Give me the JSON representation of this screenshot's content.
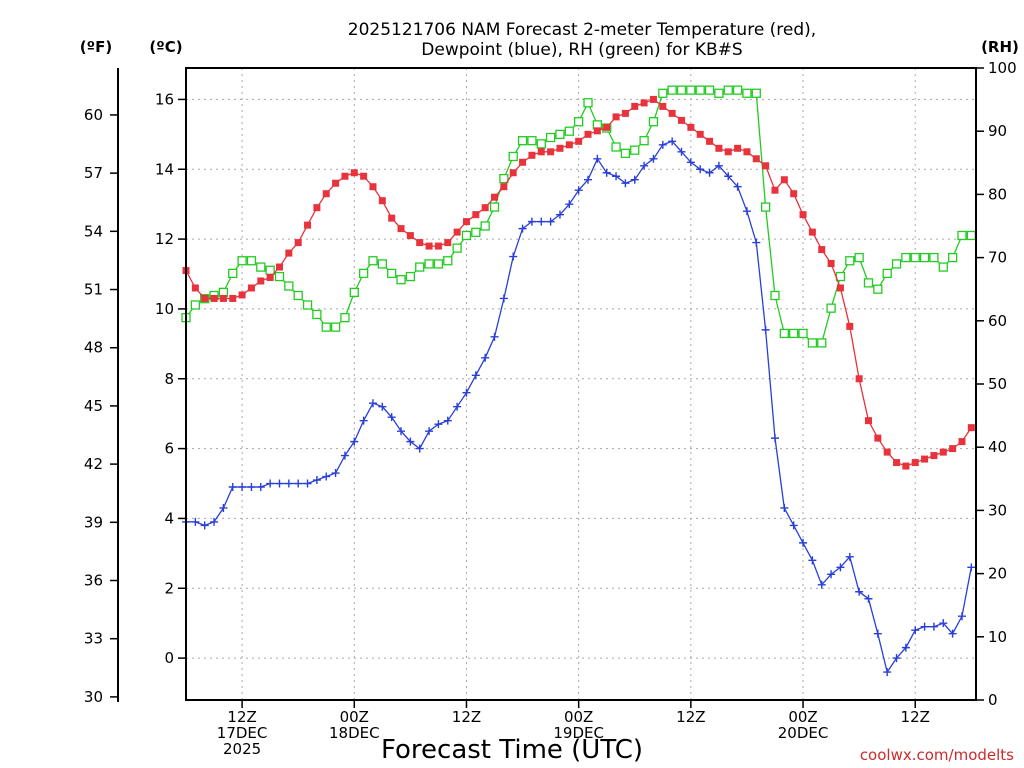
{
  "chart_data": {
    "type": "line",
    "title": [
      "2025121706 NAM Forecast 2-meter Temperature (red),",
      "Dewpoint (blue), RH (green) for KB#S"
    ],
    "xlabel": "Forecast Time (UTC)",
    "credit": "coolwx.com/modelts",
    "units": {
      "fahrenheit": "(ºF)",
      "celsius": "(ºC)",
      "rh": "(RH)"
    },
    "x_unit": "hours since 2025-12-17 06Z",
    "xlim": [
      0,
      84.5
    ],
    "celsius_axis": {
      "ylim": [
        -1.2,
        16.9
      ],
      "ticks": [
        0,
        2,
        4,
        6,
        8,
        10,
        12,
        14,
        16
      ]
    },
    "fahrenheit_axis": {
      "ticks": [
        30,
        33,
        36,
        39,
        42,
        45,
        48,
        51,
        54,
        57,
        60
      ]
    },
    "rh_axis": {
      "ylim": [
        0,
        100
      ],
      "ticks": [
        0,
        10,
        20,
        30,
        40,
        50,
        60,
        70,
        80,
        90,
        100
      ]
    },
    "x_ticks": [
      {
        "x": 6,
        "lines": [
          "12Z",
          "17DEC",
          "2025"
        ]
      },
      {
        "x": 18,
        "lines": [
          "00Z",
          "18DEC"
        ]
      },
      {
        "x": 30,
        "lines": [
          "12Z"
        ]
      },
      {
        "x": 42,
        "lines": [
          "00Z",
          "19DEC"
        ]
      },
      {
        "x": 54,
        "lines": [
          "12Z"
        ]
      },
      {
        "x": 66,
        "lines": [
          "00Z",
          "20DEC"
        ]
      },
      {
        "x": 78,
        "lines": [
          "12Z"
        ]
      }
    ],
    "x_gridlines": [
      6,
      18,
      30,
      42,
      54,
      66,
      78
    ],
    "celsius_gridlines": [
      0,
      2,
      4,
      6,
      8,
      10,
      12,
      14,
      16
    ],
    "series": [
      {
        "name": "Temperature",
        "unit": "C",
        "color": "#e8323c",
        "marker": "filled-square",
        "x": [
          0,
          1,
          2,
          3,
          4,
          5,
          6,
          7,
          8,
          9,
          10,
          11,
          12,
          13,
          14,
          15,
          16,
          17,
          18,
          19,
          20,
          21,
          22,
          23,
          24,
          25,
          26,
          27,
          28,
          29,
          30,
          31,
          32,
          33,
          34,
          35,
          36,
          37,
          38,
          39,
          40,
          41,
          42,
          43,
          44,
          45,
          46,
          47,
          48,
          49,
          50,
          51,
          52,
          53,
          54,
          55,
          56,
          57,
          58,
          59,
          60,
          61,
          62,
          63,
          64,
          65,
          66,
          67,
          68,
          69,
          70,
          71,
          72,
          73,
          74,
          75,
          76,
          77,
          78,
          79,
          80,
          81,
          82,
          83,
          84
        ],
        "values": [
          11.1,
          10.6,
          10.3,
          10.3,
          10.3,
          10.3,
          10.4,
          10.6,
          10.8,
          10.9,
          11.2,
          11.6,
          11.9,
          12.4,
          12.9,
          13.3,
          13.6,
          13.8,
          13.9,
          13.8,
          13.5,
          13.1,
          12.6,
          12.3,
          12.1,
          11.9,
          11.8,
          11.8,
          11.9,
          12.2,
          12.5,
          12.7,
          12.9,
          13.2,
          13.5,
          13.9,
          14.2,
          14.4,
          14.5,
          14.5,
          14.6,
          14.7,
          14.8,
          15.0,
          15.1,
          15.2,
          15.5,
          15.6,
          15.8,
          15.9,
          16.0,
          15.8,
          15.6,
          15.4,
          15.2,
          15.0,
          14.8,
          14.6,
          14.5,
          14.6,
          14.5,
          14.3,
          14.1,
          13.4,
          13.7,
          13.3,
          12.7,
          12.2,
          11.7,
          11.3,
          10.6,
          9.5,
          8.0,
          6.8,
          6.3,
          5.9,
          5.6,
          5.5,
          5.6,
          5.7,
          5.8,
          5.9,
          6.0,
          6.2,
          6.6
        ]
      },
      {
        "name": "Dewpoint",
        "unit": "C",
        "color": "#2a3fd8",
        "marker": "plus",
        "x": [
          0,
          1,
          2,
          3,
          4,
          5,
          6,
          7,
          8,
          9,
          10,
          11,
          12,
          13,
          14,
          15,
          16,
          17,
          18,
          19,
          20,
          21,
          22,
          23,
          24,
          25,
          26,
          27,
          28,
          29,
          30,
          31,
          32,
          33,
          34,
          35,
          36,
          37,
          38,
          39,
          40,
          41,
          42,
          43,
          44,
          45,
          46,
          47,
          48,
          49,
          50,
          51,
          52,
          53,
          54,
          55,
          56,
          57,
          58,
          59,
          60,
          61,
          62,
          63,
          64,
          65,
          66,
          67,
          68,
          69,
          70,
          71,
          72,
          73,
          74,
          75,
          76,
          77,
          78,
          79,
          80,
          81,
          82,
          83,
          84
        ],
        "values": [
          3.9,
          3.9,
          3.8,
          3.9,
          4.3,
          4.9,
          4.9,
          4.9,
          4.9,
          5.0,
          5.0,
          5.0,
          5.0,
          5.0,
          5.1,
          5.2,
          5.3,
          5.8,
          6.2,
          6.8,
          7.3,
          7.2,
          6.9,
          6.5,
          6.2,
          6.0,
          6.5,
          6.7,
          6.8,
          7.2,
          7.6,
          8.1,
          8.6,
          9.2,
          10.3,
          11.5,
          12.3,
          12.5,
          12.5,
          12.5,
          12.7,
          13.0,
          13.4,
          13.7,
          14.3,
          13.9,
          13.8,
          13.6,
          13.7,
          14.1,
          14.3,
          14.7,
          14.8,
          14.5,
          14.2,
          14.0,
          13.9,
          14.1,
          13.8,
          13.5,
          12.8,
          11.9,
          9.4,
          6.3,
          4.3,
          3.8,
          3.3,
          2.8,
          2.1,
          2.4,
          2.6,
          2.9,
          1.9,
          1.7,
          0.7,
          -0.4,
          0.0,
          0.3,
          0.8,
          0.9,
          0.9,
          1.0,
          0.7,
          1.2,
          2.6
        ]
      },
      {
        "name": "RH",
        "unit": "%",
        "color": "#22cc22",
        "marker": "open-square",
        "x": [
          0,
          1,
          2,
          3,
          4,
          5,
          6,
          7,
          8,
          9,
          10,
          11,
          12,
          13,
          14,
          15,
          16,
          17,
          18,
          19,
          20,
          21,
          22,
          23,
          24,
          25,
          26,
          27,
          28,
          29,
          30,
          31,
          32,
          33,
          34,
          35,
          36,
          37,
          38,
          39,
          40,
          41,
          42,
          43,
          44,
          45,
          46,
          47,
          48,
          49,
          50,
          51,
          52,
          53,
          54,
          55,
          56,
          57,
          58,
          59,
          60,
          61,
          62,
          63,
          64,
          65,
          66,
          67,
          68,
          69,
          70,
          71,
          72,
          73,
          74,
          75,
          76,
          77,
          78,
          79,
          80,
          81,
          82,
          83,
          84
        ],
        "values": [
          60.5,
          62.5,
          63.5,
          64.0,
          64.5,
          67.5,
          69.5,
          69.5,
          68.5,
          68.0,
          67.0,
          65.5,
          64.0,
          62.5,
          61.0,
          59.0,
          59.0,
          60.5,
          64.5,
          67.5,
          69.5,
          69.0,
          67.5,
          66.5,
          67.0,
          68.5,
          69.0,
          69.0,
          69.5,
          71.5,
          73.5,
          74.0,
          75.0,
          78.0,
          82.5,
          86.0,
          88.5,
          88.5,
          88.0,
          89.0,
          89.5,
          90.0,
          91.5,
          94.5,
          91.0,
          90.5,
          87.5,
          86.5,
          87.0,
          88.5,
          91.5,
          96.0,
          96.5,
          96.5,
          96.5,
          96.5,
          96.5,
          96.0,
          96.5,
          96.5,
          96.0,
          96.0,
          78.0,
          64.0,
          58.0,
          58.0,
          58.0,
          56.5,
          56.5,
          62.0,
          67.0,
          69.5,
          70.0,
          66.0,
          65.0,
          67.5,
          69.0,
          70.0,
          70.0,
          70.0,
          70.0,
          68.5,
          70.0,
          73.5,
          73.5
        ]
      }
    ]
  }
}
